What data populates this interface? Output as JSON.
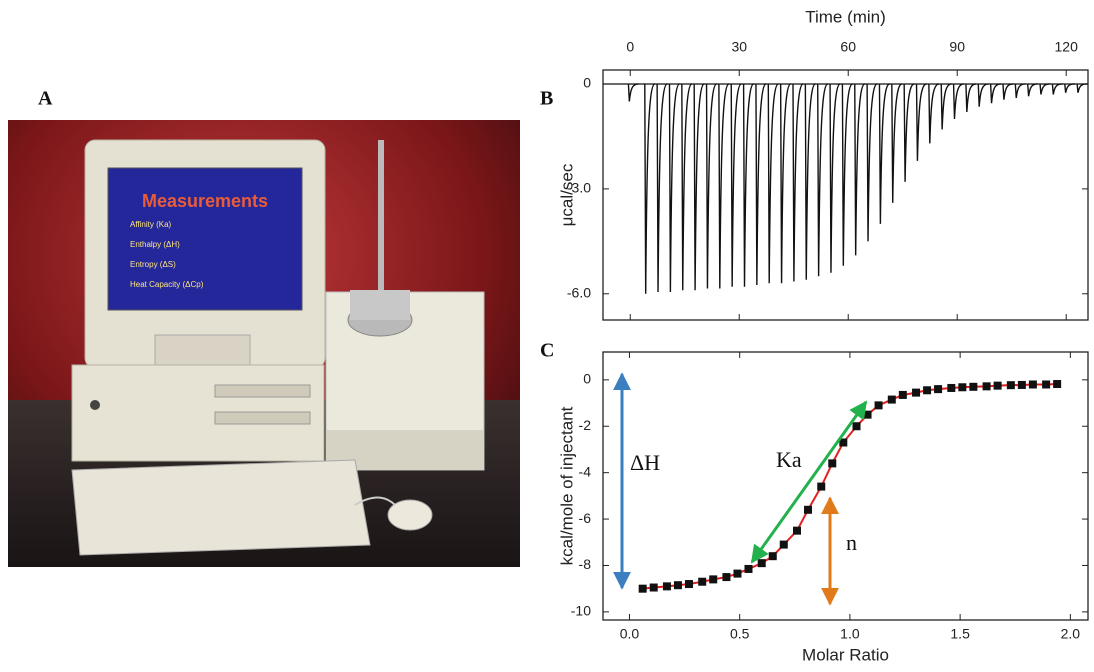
{
  "panel_labels": [
    "A",
    "B",
    "C"
  ],
  "photo": {
    "screen_title": "Measurements",
    "screen_items": [
      "Affinity (Ka)",
      "Enthalpy (ΔH)",
      "Entropy (ΔS)",
      "Heat Capacity (ΔCp)"
    ]
  },
  "chart_data": [
    {
      "type": "spikes",
      "xlabel": "Time (min)",
      "ylabel": "μcal/sec",
      "color": "#111111",
      "x": [
        -0.5,
        4.0,
        7.4,
        10.8,
        14.2,
        17.6,
        21.0,
        24.4,
        27.8,
        31.2,
        34.6,
        38.0,
        41.4,
        44.8,
        48.2,
        51.6,
        55.0,
        58.4,
        61.8,
        65.2,
        68.6,
        72.0,
        75.4,
        78.8,
        82.2,
        85.6,
        89.0,
        92.4,
        95.8,
        99.2,
        102.6,
        106.0,
        109.4,
        112.8,
        116.2,
        119.6,
        123.0
      ],
      "values": [
        -0.5,
        -6.0,
        -5.95,
        -5.95,
        -5.9,
        -5.9,
        -5.85,
        -5.85,
        -5.8,
        -5.8,
        -5.75,
        -5.7,
        -5.7,
        -5.65,
        -5.6,
        -5.5,
        -5.4,
        -5.2,
        -4.9,
        -4.5,
        -4.0,
        -3.4,
        -2.8,
        -2.2,
        -1.7,
        -1.3,
        -1.0,
        -0.8,
        -0.65,
        -0.55,
        -0.45,
        -0.4,
        -0.35,
        -0.3,
        -0.3,
        -0.25,
        -0.25
      ],
      "xlim": [
        -7.5,
        126
      ],
      "xticks": [
        0,
        30,
        60,
        90,
        120
      ],
      "ylim": [
        -6.75,
        0.4
      ],
      "yticks": [
        0,
        {
          "value": -3,
          "label": "-3.0"
        },
        {
          "value": -6,
          "label": "-6.0"
        }
      ]
    },
    {
      "type": "scatter",
      "xlabel": "Molar Ratio",
      "ylabel": "kcal/mole of injectant",
      "color": "#111111",
      "line_color": "#e02020",
      "x": [
        0.06,
        0.11,
        0.17,
        0.22,
        0.27,
        0.33,
        0.38,
        0.44,
        0.49,
        0.54,
        0.6,
        0.65,
        0.7,
        0.76,
        0.81,
        0.87,
        0.92,
        0.97,
        1.03,
        1.08,
        1.13,
        1.19,
        1.24,
        1.3,
        1.35,
        1.4,
        1.46,
        1.51,
        1.56,
        1.62,
        1.67,
        1.73,
        1.78,
        1.83,
        1.89,
        1.94
      ],
      "values": [
        -9.0,
        -8.95,
        -8.9,
        -8.85,
        -8.8,
        -8.7,
        -8.6,
        -8.5,
        -8.35,
        -8.15,
        -7.9,
        -7.6,
        -7.1,
        -6.5,
        -5.6,
        -4.6,
        -3.6,
        -2.7,
        -2.0,
        -1.5,
        -1.1,
        -0.85,
        -0.65,
        -0.55,
        -0.45,
        -0.4,
        -0.35,
        -0.32,
        -0.3,
        -0.28,
        -0.25,
        -0.23,
        -0.22,
        -0.2,
        -0.2,
        -0.18
      ],
      "xlim": [
        -0.12,
        2.08
      ],
      "xticks": [
        {
          "value": 0,
          "label": "0.0"
        },
        0.5,
        {
          "value": 1,
          "label": "1.0"
        },
        1.5,
        {
          "value": 2,
          "label": "2.0"
        }
      ],
      "ylim": [
        -10.35,
        1.2
      ],
      "yticks": [
        0,
        -2,
        -4,
        -6,
        -8,
        -10
      ],
      "annotations": [
        "ΔH",
        "Ka",
        "n"
      ]
    }
  ]
}
